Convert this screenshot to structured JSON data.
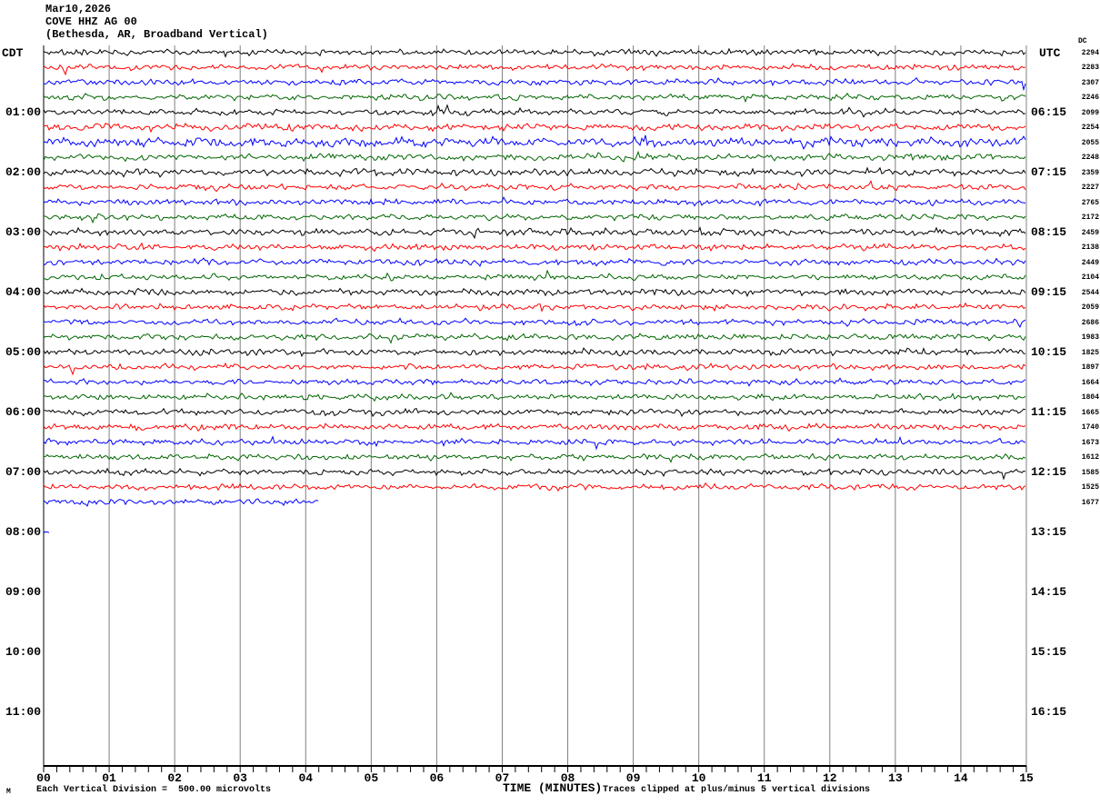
{
  "title": {
    "date": "Mar10,2026",
    "station": "COVE HHZ AG 00",
    "location": "(Bethesda, AR, Broadband Vertical)"
  },
  "axes": {
    "left_header": "CDT",
    "right_header": "UTC",
    "dc_header": "DC",
    "x_label": "TIME (MINUTES)",
    "x_ticks": [
      "00",
      "01",
      "02",
      "03",
      "04",
      "05",
      "06",
      "07",
      "08",
      "09",
      "10",
      "11",
      "12",
      "13",
      "14",
      "15"
    ],
    "left_times": [
      "01:00",
      "02:00",
      "03:00",
      "04:00",
      "05:00",
      "06:00",
      "07:00",
      "08:00",
      "09:00",
      "10:00",
      "11:00"
    ],
    "right_times": [
      "06:15",
      "07:15",
      "08:15",
      "09:15",
      "10:15",
      "11:15",
      "12:15",
      "13:15",
      "14:15",
      "15:15",
      "16:15"
    ]
  },
  "footer": {
    "mark": "M",
    "scale_note": "Each Vertical Division =  500.00 microvolts",
    "clip_note": "Traces clipped at plus/minus 5 vertical divisions"
  },
  "colors": {
    "trace_map": {
      "black": "#000000",
      "red": "#ff0000",
      "blue": "#0000ff",
      "green": "#006600"
    },
    "grid": "#808080",
    "axis": "#000000"
  },
  "chart_data": {
    "type": "line",
    "subtype": "helicorder-seismogram",
    "minutes_per_line": 15,
    "x_range_minutes": [
      0,
      15
    ],
    "vertical_division_microvolts": 500.0,
    "clip_divisions": 5,
    "lines": [
      {
        "start_cdt": "00:00",
        "color": "black",
        "dc": 2294,
        "amp": 1.0,
        "cov": 1
      },
      {
        "start_cdt": "00:15",
        "color": "red",
        "dc": 2283,
        "amp": 1.0,
        "cov": 1
      },
      {
        "start_cdt": "00:30",
        "color": "blue",
        "dc": 2307,
        "amp": 1.05,
        "cov": 1
      },
      {
        "start_cdt": "00:45",
        "color": "green",
        "dc": 2246,
        "amp": 1.0,
        "cov": 1
      },
      {
        "start_cdt": "01:00",
        "color": "black",
        "dc": 2099,
        "amp": 1.0,
        "cov": 1
      },
      {
        "start_cdt": "01:15",
        "color": "red",
        "dc": 2254,
        "amp": 1.25,
        "cov": 1
      },
      {
        "start_cdt": "01:30",
        "color": "blue",
        "dc": 2055,
        "amp": 1.7,
        "cov": 1
      },
      {
        "start_cdt": "01:45",
        "color": "green",
        "dc": 2248,
        "amp": 1.15,
        "cov": 1
      },
      {
        "start_cdt": "02:00",
        "color": "black",
        "dc": 2359,
        "amp": 1.2,
        "cov": 1
      },
      {
        "start_cdt": "02:15",
        "color": "red",
        "dc": 2227,
        "amp": 1.05,
        "cov": 1
      },
      {
        "start_cdt": "02:30",
        "color": "blue",
        "dc": 2765,
        "amp": 1.05,
        "cov": 1
      },
      {
        "start_cdt": "02:45",
        "color": "green",
        "dc": 2172,
        "amp": 1.0,
        "cov": 1
      },
      {
        "start_cdt": "03:00",
        "color": "black",
        "dc": 2459,
        "amp": 1.15,
        "cov": 1
      },
      {
        "start_cdt": "03:15",
        "color": "red",
        "dc": 2138,
        "amp": 1.0,
        "cov": 1
      },
      {
        "start_cdt": "03:30",
        "color": "blue",
        "dc": 2449,
        "amp": 1.05,
        "cov": 1
      },
      {
        "start_cdt": "03:45",
        "color": "green",
        "dc": 2104,
        "amp": 1.0,
        "cov": 1
      },
      {
        "start_cdt": "04:00",
        "color": "black",
        "dc": 2544,
        "amp": 1.1,
        "cov": 1
      },
      {
        "start_cdt": "04:15",
        "color": "red",
        "dc": 2059,
        "amp": 1.0,
        "cov": 1
      },
      {
        "start_cdt": "04:30",
        "color": "blue",
        "dc": 2686,
        "amp": 1.0,
        "cov": 1
      },
      {
        "start_cdt": "04:45",
        "color": "green",
        "dc": 1983,
        "amp": 1.0,
        "cov": 1
      },
      {
        "start_cdt": "05:00",
        "color": "black",
        "dc": 1825,
        "amp": 1.1,
        "cov": 1
      },
      {
        "start_cdt": "05:15",
        "color": "red",
        "dc": 1897,
        "amp": 1.0,
        "cov": 1
      },
      {
        "start_cdt": "05:30",
        "color": "blue",
        "dc": 1664,
        "amp": 1.0,
        "cov": 1
      },
      {
        "start_cdt": "05:45",
        "color": "green",
        "dc": 1804,
        "amp": 1.0,
        "cov": 1
      },
      {
        "start_cdt": "06:00",
        "color": "black",
        "dc": 1665,
        "amp": 1.05,
        "cov": 1
      },
      {
        "start_cdt": "06:15",
        "color": "red",
        "dc": 1740,
        "amp": 1.05,
        "cov": 1
      },
      {
        "start_cdt": "06:30",
        "color": "blue",
        "dc": 1673,
        "amp": 1.0,
        "cov": 1
      },
      {
        "start_cdt": "06:45",
        "color": "green",
        "dc": 1612,
        "amp": 1.0,
        "cov": 1
      },
      {
        "start_cdt": "07:00",
        "color": "black",
        "dc": 1585,
        "amp": 1.05,
        "cov": 1
      },
      {
        "start_cdt": "07:15",
        "color": "red",
        "dc": 1525,
        "amp": 1.0,
        "cov": 1
      },
      {
        "start_cdt": "07:30",
        "color": "blue",
        "dc": 1677,
        "amp": 1.0,
        "cov": 0.28
      },
      {
        "start_cdt": "08:00",
        "color": "blue",
        "dc": null,
        "amp": 0.6,
        "cov": 0.006
      }
    ]
  }
}
